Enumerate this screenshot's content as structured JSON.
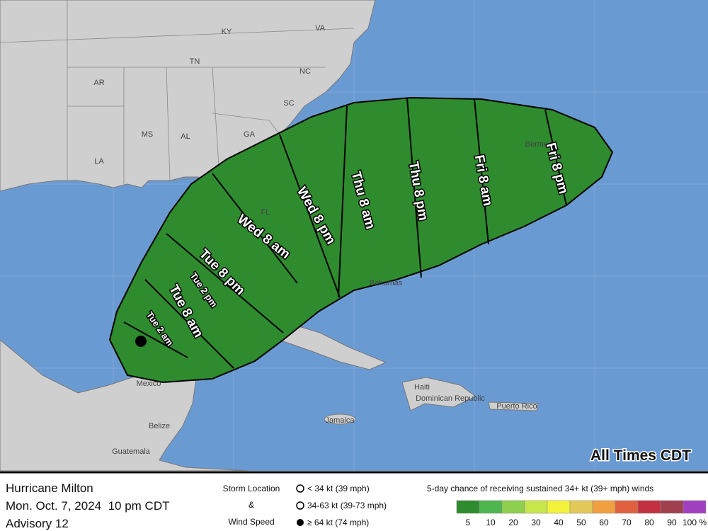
{
  "map": {
    "places": [
      "KY",
      "VA",
      "TN",
      "NC",
      "AR",
      "SC",
      "MS",
      "AL",
      "GA",
      "LA",
      "FL",
      "Mexico",
      "Belize",
      "Guatemala",
      "Bahamas",
      "Haiti",
      "Dominican Republic",
      "Puerto Rico",
      "Jamaica",
      "Bermuda"
    ],
    "times": [
      "Tue 2 am",
      "Tue 8 am",
      "Tue 2 pm",
      "Tue 8 pm",
      "Wed 8 am",
      "Wed 8 pm",
      "Thu 8 am",
      "Thu 8 pm",
      "Fri 8 am",
      "Fri 8 pm"
    ],
    "time_zone_note": "All Times CDT"
  },
  "footer": {
    "storm": "Hurricane Milton",
    "date": "Mon. Oct. 7, 2024  10 pm CDT",
    "advisory": "Advisory 12",
    "key_title": [
      "Storm Location",
      "&",
      "Wind Speed"
    ],
    "wind_classes": [
      "< 34 kt (39 mph)",
      "34-63 kt (39-73 mph)",
      "≥ 64 kt (74 mph)"
    ],
    "legend_title": "5-day chance of receiving sustained 34+ kt (39+ mph) winds",
    "legend": [
      {
        "label": "5",
        "color": "#2e8b2e"
      },
      {
        "label": "10",
        "color": "#4fb54f"
      },
      {
        "label": "20",
        "color": "#8fd14f"
      },
      {
        "label": "30",
        "color": "#c8e64c"
      },
      {
        "label": "40",
        "color": "#f2f23a"
      },
      {
        "label": "50",
        "color": "#e3c85a"
      },
      {
        "label": "60",
        "color": "#f0a040"
      },
      {
        "label": "70",
        "color": "#e06040"
      },
      {
        "label": "80",
        "color": "#c33040"
      },
      {
        "label": "90",
        "color": "#a0404f"
      },
      {
        "label": "100 %",
        "color": "#a040c0"
      }
    ]
  }
}
